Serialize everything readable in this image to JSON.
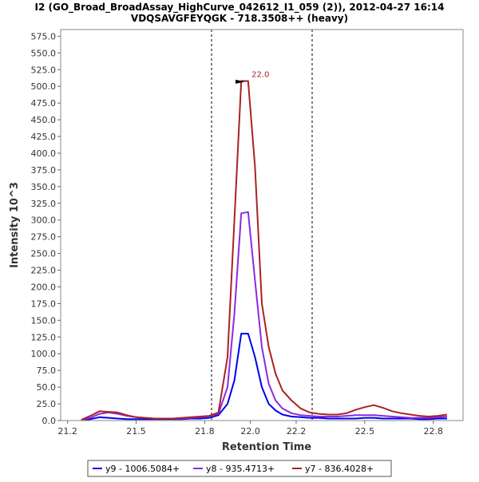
{
  "chart_data": {
    "type": "line",
    "title_line1": "I2 (GO_Broad_BroadAssay_HighCurve_042612_I1_059 (2)), 2012-04-27 16:14",
    "title_line2": "VDQSAVGFEYQGK - 718.3508++ (heavy)",
    "xlabel": "Retention Time",
    "ylabel": "Intensity 10^3",
    "xlim": [
      21.17,
      22.93
    ],
    "ylim": [
      0,
      585
    ],
    "x_ticks": [
      21.2,
      21.5,
      21.8,
      22.0,
      22.2,
      22.5,
      22.8
    ],
    "x_tick_labels": [
      "21.2",
      "21.5",
      "21.8",
      "22.0",
      "22.2",
      "22.5",
      "22.8"
    ],
    "y_ticks": [
      0,
      25,
      50,
      75,
      100,
      125,
      150,
      175,
      200,
      225,
      250,
      275,
      300,
      325,
      350,
      375,
      400,
      425,
      450,
      475,
      500,
      525,
      550,
      575
    ],
    "y_tick_labels": [
      "0.0",
      "25.0",
      "50.0",
      "75.0",
      "100.0",
      "125.0",
      "150.0",
      "175.0",
      "200.0",
      "225.0",
      "250.0",
      "275.0",
      "300.0",
      "325.0",
      "350.0",
      "375.0",
      "400.0",
      "425.0",
      "450.0",
      "475.0",
      "500.0",
      "525.0",
      "550.0",
      "575.0"
    ],
    "vlines": [
      21.83,
      22.27
    ],
    "peak_annotation": {
      "x": 21.97,
      "y": 507,
      "label": "22.0"
    },
    "x": [
      21.26,
      21.3,
      21.34,
      21.38,
      21.42,
      21.46,
      21.5,
      21.54,
      21.58,
      21.62,
      21.66,
      21.7,
      21.74,
      21.78,
      21.82,
      21.86,
      21.9,
      21.93,
      21.96,
      21.99,
      22.02,
      22.05,
      22.08,
      22.11,
      22.14,
      22.18,
      22.22,
      22.26,
      22.3,
      22.34,
      22.38,
      22.42,
      22.46,
      22.5,
      22.54,
      22.58,
      22.62,
      22.66,
      22.7,
      22.74,
      22.78,
      22.82,
      22.86
    ],
    "series": [
      {
        "name": "y9 - 1006.5084+",
        "color": "#0000ee",
        "values": [
          1,
          2,
          5,
          4,
          3,
          2,
          2,
          2,
          2,
          2,
          2,
          2,
          3,
          3,
          4,
          8,
          25,
          60,
          130,
          130,
          95,
          50,
          25,
          15,
          9,
          6,
          5,
          4,
          4,
          3,
          3,
          3,
          3,
          4,
          4,
          3,
          3,
          3,
          3,
          2,
          2,
          3,
          3
        ]
      },
      {
        "name": "y8 - 935.4713+",
        "color": "#8a2be2",
        "values": [
          1,
          4,
          10,
          12,
          10,
          7,
          5,
          4,
          3,
          3,
          3,
          3,
          4,
          5,
          6,
          10,
          50,
          160,
          310,
          312,
          210,
          110,
          55,
          30,
          18,
          11,
          8,
          7,
          6,
          6,
          6,
          7,
          8,
          8,
          8,
          7,
          6,
          5,
          4,
          4,
          4,
          5,
          6
        ]
      },
      {
        "name": "y7 - 836.4028+",
        "color": "#aa2222",
        "values": [
          1,
          7,
          14,
          13,
          12,
          8,
          5,
          4,
          3,
          3,
          3,
          4,
          5,
          6,
          7,
          12,
          95,
          300,
          508,
          508,
          380,
          175,
          110,
          70,
          45,
          30,
          18,
          12,
          10,
          9,
          9,
          11,
          16,
          20,
          23,
          19,
          14,
          11,
          9,
          7,
          6,
          7,
          9
        ]
      }
    ]
  }
}
